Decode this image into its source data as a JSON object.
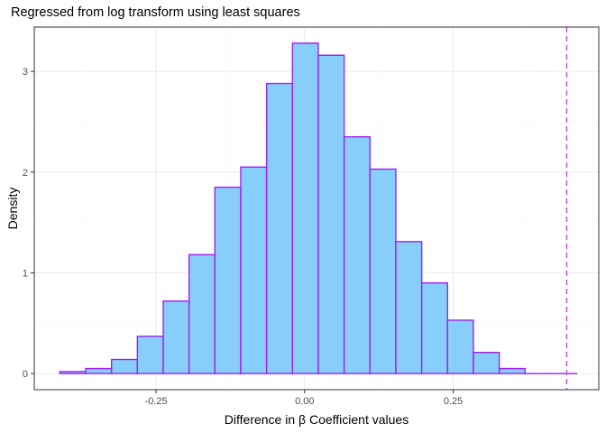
{
  "chart_data": {
    "type": "bar",
    "subtype": "histogram",
    "title": "Regressed from log transform using least squares",
    "xlabel": "Difference in β Coefficient values",
    "ylabel": "Density",
    "xlim": [
      -0.455,
      0.495
    ],
    "ylim": [
      -0.16,
      3.44
    ],
    "xticks": [
      -0.25,
      0.0,
      0.25
    ],
    "xtick_labels": [
      "-0.25",
      "0.00",
      "0.25"
    ],
    "yticks": [
      0,
      1,
      2,
      3
    ],
    "ytick_labels": [
      "0",
      "1",
      "2",
      "3"
    ],
    "bin_width": 0.0435,
    "bins": [
      {
        "x0": -0.412,
        "x1": -0.3685,
        "density": 0.02
      },
      {
        "x0": -0.3685,
        "x1": -0.325,
        "density": 0.05
      },
      {
        "x0": -0.325,
        "x1": -0.2815,
        "density": 0.14
      },
      {
        "x0": -0.2815,
        "x1": -0.238,
        "density": 0.37
      },
      {
        "x0": -0.238,
        "x1": -0.1945,
        "density": 0.72
      },
      {
        "x0": -0.1945,
        "x1": -0.151,
        "density": 1.18
      },
      {
        "x0": -0.151,
        "x1": -0.1075,
        "density": 1.85
      },
      {
        "x0": -0.1075,
        "x1": -0.064,
        "density": 2.05
      },
      {
        "x0": -0.064,
        "x1": -0.0205,
        "density": 2.88
      },
      {
        "x0": -0.0205,
        "x1": 0.023,
        "density": 3.28
      },
      {
        "x0": 0.023,
        "x1": 0.0665,
        "density": 3.16
      },
      {
        "x0": 0.0665,
        "x1": 0.11,
        "density": 2.35
      },
      {
        "x0": 0.11,
        "x1": 0.1535,
        "density": 2.03
      },
      {
        "x0": 0.1535,
        "x1": 0.197,
        "density": 1.31
      },
      {
        "x0": 0.197,
        "x1": 0.2405,
        "density": 0.9
      },
      {
        "x0": 0.2405,
        "x1": 0.284,
        "density": 0.53
      },
      {
        "x0": 0.284,
        "x1": 0.3275,
        "density": 0.21
      },
      {
        "x0": 0.3275,
        "x1": 0.371,
        "density": 0.05
      },
      {
        "x0": 0.371,
        "x1": 0.4145,
        "density": 0.0
      },
      {
        "x0": 0.4145,
        "x1": 0.458,
        "density": 0.0
      }
    ],
    "reference_line": {
      "x": 0.441,
      "style": "dashed",
      "color": "#b44fd1"
    },
    "grid": true,
    "colors": {
      "bar_fill": "#87cefa",
      "bar_stroke": "#a020f0",
      "grid_major": "#ebebeb",
      "grid_minor": "#f5f5f5",
      "panel_border": "#333333"
    }
  }
}
